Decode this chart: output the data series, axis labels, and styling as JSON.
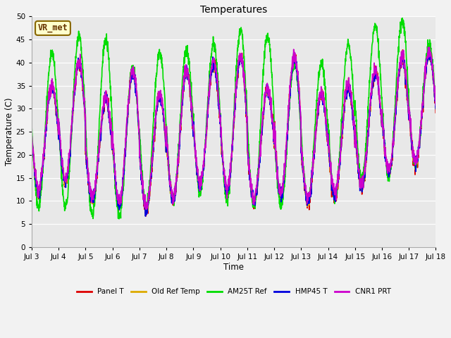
{
  "title": "Temperatures",
  "xlabel": "Time",
  "ylabel": "Temperature (C)",
  "ylim": [
    0,
    50
  ],
  "yticks": [
    0,
    5,
    10,
    15,
    20,
    25,
    30,
    35,
    40,
    45,
    50
  ],
  "x_labels": [
    "Jul 3",
    "Jul 4",
    "Jul 5",
    "Jul 6",
    "Jul 7",
    "Jul 8",
    "Jul 9",
    "Jul 10",
    "Jul 11",
    "Jul 12",
    "Jul 13",
    "Jul 14",
    "Jul 15",
    "Jul 16",
    "Jul 17",
    "Jul 18"
  ],
  "x_positions": [
    3,
    4,
    5,
    6,
    7,
    8,
    9,
    10,
    11,
    12,
    13,
    14,
    15,
    16,
    17,
    18
  ],
  "series_order": [
    "Panel T",
    "Old Ref Temp",
    "AM25T Ref",
    "HMP45 T",
    "CNR1 PRT"
  ],
  "series": {
    "Panel T": {
      "color": "#dd0000",
      "lw": 1.2
    },
    "Old Ref Temp": {
      "color": "#ddaa00",
      "lw": 1.2
    },
    "AM25T Ref": {
      "color": "#00dd00",
      "lw": 1.2
    },
    "HMP45 T": {
      "color": "#0000dd",
      "lw": 1.2
    },
    "CNR1 PRT": {
      "color": "#cc00cc",
      "lw": 1.2
    }
  },
  "annotation_text": "VR_met",
  "annotation_bg": "#ffffcc",
  "annotation_edge": "#886600",
  "annotation_textcolor": "#663300",
  "background_color": "#e8e8e8",
  "fig_color": "#f2f2f2",
  "grid_color": "#ffffff",
  "n_days": 15,
  "day_start": 3,
  "points_per_day": 144,
  "figsize": [
    6.4,
    4.8
  ],
  "dpi": 100
}
